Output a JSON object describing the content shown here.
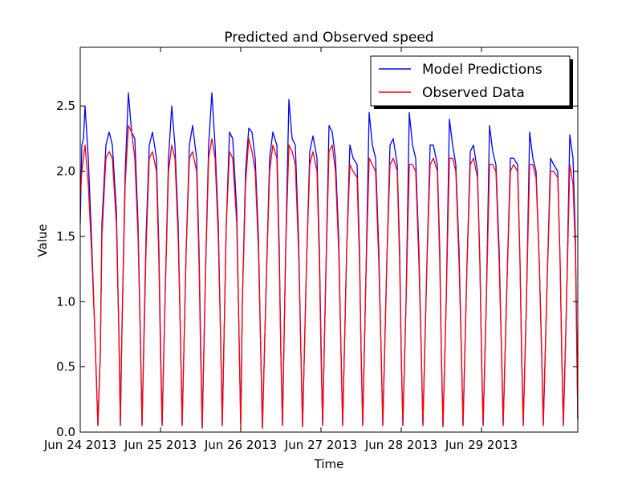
{
  "chart_data": {
    "type": "line",
    "title": "Predicted and Observed speed",
    "xlabel": "Time",
    "ylabel": "Value",
    "xlim": [
      0,
      6.2
    ],
    "ylim": [
      0.0,
      2.95
    ],
    "grid": false,
    "legend_position": "top-right",
    "x_ticks": [
      {
        "x": 0,
        "label": "Jun 24 2013"
      },
      {
        "x": 1,
        "label": "Jun 25 2013"
      },
      {
        "x": 2,
        "label": "Jun 26 2013"
      },
      {
        "x": 3,
        "label": "Jun 27 2013"
      },
      {
        "x": 4,
        "label": "Jun 28 2013"
      },
      {
        "x": 5,
        "label": "Jun 29 2013"
      }
    ],
    "y_ticks": [
      {
        "y": 0.0,
        "label": "0.0"
      },
      {
        "y": 0.5,
        "label": "0.5"
      },
      {
        "y": 1.0,
        "label": "1.0"
      },
      {
        "y": 1.5,
        "label": "1.5"
      },
      {
        "y": 2.0,
        "label": "2.0"
      },
      {
        "y": 2.5,
        "label": "2.5"
      }
    ],
    "series": [
      {
        "name": "Model Predictions",
        "color": "#0000ff",
        "x": [
          0,
          0.02,
          0.04,
          0.06,
          0.1,
          0.14,
          0.18,
          0.22,
          0.25,
          0.27,
          0.32,
          0.36,
          0.4,
          0.45,
          0.48,
          0.5,
          0.52,
          0.56,
          0.6,
          0.64,
          0.68,
          0.72,
          0.75,
          0.77,
          0.82,
          0.86,
          0.9,
          0.95,
          0.98,
          1.0,
          1.02,
          1.06,
          1.1,
          1.14,
          1.18,
          1.22,
          1.25,
          1.27,
          1.32,
          1.36,
          1.4,
          1.45,
          1.48,
          1.5,
          1.52,
          1.56,
          1.6,
          1.64,
          1.68,
          1.72,
          1.75,
          1.77,
          1.82,
          1.86,
          1.9,
          1.95,
          1.98,
          2.0,
          2.02,
          2.06,
          2.1,
          2.14,
          2.18,
          2.22,
          2.25,
          2.27,
          2.32,
          2.36,
          2.4,
          2.45,
          2.48,
          2.5,
          2.52,
          2.56,
          2.6,
          2.64,
          2.68,
          2.72,
          2.75,
          2.77,
          2.82,
          2.86,
          2.9,
          2.95,
          2.98,
          3.0,
          3.02,
          3.06,
          3.1,
          3.14,
          3.18,
          3.22,
          3.25,
          3.27,
          3.32,
          3.36,
          3.4,
          3.45,
          3.48,
          3.5,
          3.52,
          3.56,
          3.6,
          3.64,
          3.68,
          3.72,
          3.75,
          3.77,
          3.82,
          3.86,
          3.9,
          3.95,
          3.98,
          4.0,
          4.02,
          4.06,
          4.1,
          4.14,
          4.18,
          4.22,
          4.25,
          4.27,
          4.32,
          4.36,
          4.4,
          4.45,
          4.48,
          4.5,
          4.52,
          4.56,
          4.6,
          4.64,
          4.68,
          4.72,
          4.75,
          4.77,
          4.82,
          4.86,
          4.9,
          4.95,
          4.98,
          5.0,
          5.02,
          5.06,
          5.1,
          5.14,
          5.18,
          5.22,
          5.25,
          5.27,
          5.32,
          5.36,
          5.4,
          5.45,
          5.48,
          5.5,
          5.52,
          5.56,
          5.6,
          5.64,
          5.68,
          5.72,
          5.75,
          5.77,
          5.82,
          5.86,
          5.9,
          5.95,
          5.98,
          6.0,
          6.02,
          6.06,
          6.1,
          6.14,
          6.17,
          6.2
        ],
        "y": [
          1.6,
          2.2,
          2.25,
          2.5,
          2.1,
          1.5,
          0.8,
          0.05,
          0.6,
          1.6,
          2.2,
          2.3,
          2.2,
          1.7,
          0.8,
          0.05,
          0.8,
          2.0,
          2.6,
          2.3,
          2.25,
          1.6,
          0.7,
          0.05,
          1.5,
          2.2,
          2.3,
          2.1,
          1.4,
          0.7,
          0.05,
          1.1,
          2.1,
          2.5,
          2.2,
          1.6,
          0.7,
          0.05,
          1.4,
          2.2,
          2.35,
          2.1,
          1.4,
          0.7,
          0.03,
          1.2,
          2.2,
          2.6,
          2.2,
          1.6,
          0.7,
          0.05,
          1.6,
          2.3,
          2.25,
          1.7,
          0.7,
          0.06,
          1.0,
          2.0,
          2.33,
          2.3,
          2.1,
          1.5,
          0.6,
          0.03,
          1.2,
          2.1,
          2.3,
          2.2,
          1.4,
          0.6,
          0.05,
          1.4,
          2.55,
          2.25,
          2.2,
          1.5,
          0.6,
          0.04,
          1.3,
          2.15,
          2.27,
          2.1,
          1.4,
          0.7,
          0.05,
          1.2,
          2.35,
          2.3,
          2.1,
          1.5,
          0.6,
          0.05,
          1.4,
          2.2,
          2.1,
          2.05,
          1.4,
          0.6,
          0.05,
          1.2,
          2.45,
          2.2,
          2.1,
          1.4,
          0.6,
          0.05,
          1.3,
          2.2,
          2.25,
          2.05,
          1.4,
          0.6,
          0.05,
          1.0,
          2.45,
          2.2,
          2.1,
          1.4,
          0.6,
          0.05,
          1.3,
          2.2,
          2.2,
          2.05,
          1.4,
          0.6,
          0.04,
          1.0,
          2.4,
          2.2,
          2.05,
          1.4,
          0.6,
          0.05,
          1.3,
          2.15,
          2.2,
          2.0,
          1.3,
          0.6,
          0.05,
          1.0,
          2.35,
          2.15,
          2.05,
          1.4,
          0.6,
          0.05,
          1.2,
          2.1,
          2.1,
          2.05,
          1.3,
          0.6,
          0.05,
          1.0,
          2.3,
          2.1,
          2.0,
          1.3,
          0.6,
          0.05,
          1.2,
          2.1,
          2.05,
          2.0,
          1.3,
          0.6,
          0.05,
          1.0,
          2.28,
          2.1,
          1.5,
          0.1
        ],
        "daily_peak_pattern": "two peaks per day"
      },
      {
        "name": "Observed Data",
        "color": "#ff0000",
        "x": [
          0,
          0.02,
          0.04,
          0.06,
          0.1,
          0.14,
          0.18,
          0.22,
          0.25,
          0.27,
          0.32,
          0.36,
          0.4,
          0.45,
          0.48,
          0.5,
          0.52,
          0.56,
          0.6,
          0.64,
          0.68,
          0.72,
          0.75,
          0.77,
          0.82,
          0.86,
          0.9,
          0.95,
          0.98,
          1.0,
          1.02,
          1.06,
          1.1,
          1.14,
          1.18,
          1.22,
          1.25,
          1.27,
          1.32,
          1.36,
          1.4,
          1.45,
          1.48,
          1.5,
          1.52,
          1.56,
          1.6,
          1.64,
          1.68,
          1.72,
          1.75,
          1.77,
          1.82,
          1.86,
          1.9,
          1.95,
          1.98,
          2.0,
          2.02,
          2.06,
          2.1,
          2.14,
          2.18,
          2.22,
          2.25,
          2.27,
          2.32,
          2.36,
          2.4,
          2.45,
          2.48,
          2.5,
          2.52,
          2.56,
          2.6,
          2.64,
          2.68,
          2.72,
          2.75,
          2.77,
          2.82,
          2.86,
          2.9,
          2.95,
          2.98,
          3.0,
          3.02,
          3.06,
          3.1,
          3.14,
          3.18,
          3.22,
          3.25,
          3.27,
          3.32,
          3.36,
          3.4,
          3.45,
          3.48,
          3.5,
          3.52,
          3.56,
          3.6,
          3.64,
          3.68,
          3.72,
          3.75,
          3.77,
          3.82,
          3.86,
          3.9,
          3.95,
          3.98,
          4.0,
          4.02,
          4.06,
          4.1,
          4.14,
          4.18,
          4.22,
          4.25,
          4.27,
          4.32,
          4.36,
          4.4,
          4.45,
          4.48,
          4.5,
          4.52,
          4.56,
          4.6,
          4.64,
          4.68,
          4.72,
          4.75,
          4.77,
          4.82,
          4.86,
          4.9,
          4.95,
          4.98,
          5.0,
          5.02,
          5.06,
          5.1,
          5.14,
          5.18,
          5.22,
          5.25,
          5.27,
          5.32,
          5.36,
          5.4,
          5.45,
          5.48,
          5.5,
          5.52,
          5.56,
          5.6,
          5.64,
          5.68,
          5.72,
          5.75,
          5.77,
          5.82,
          5.86,
          5.9,
          5.95,
          5.98,
          6.0,
          6.02,
          6.06,
          6.1,
          6.14,
          6.17,
          6.2
        ],
        "y": [
          1.8,
          2.0,
          2.1,
          2.2,
          1.9,
          1.4,
          0.8,
          0.05,
          0.6,
          1.5,
          2.1,
          2.15,
          2.1,
          1.6,
          0.8,
          0.07,
          0.8,
          1.9,
          2.35,
          2.3,
          2.1,
          1.5,
          0.7,
          0.05,
          1.4,
          2.1,
          2.15,
          2.0,
          1.3,
          0.6,
          0.05,
          1.1,
          2.0,
          2.2,
          2.1,
          1.5,
          0.7,
          0.05,
          1.4,
          2.1,
          2.15,
          2.0,
          1.3,
          0.6,
          0.03,
          1.2,
          2.1,
          2.25,
          2.1,
          1.5,
          0.7,
          0.05,
          1.6,
          2.15,
          2.1,
          1.6,
          0.7,
          0.02,
          1.0,
          1.9,
          2.25,
          2.15,
          2.0,
          1.4,
          0.6,
          0.03,
          1.2,
          2.0,
          2.2,
          2.1,
          1.3,
          0.6,
          0.05,
          1.4,
          2.2,
          2.15,
          2.05,
          1.4,
          0.6,
          0.04,
          1.3,
          2.05,
          2.15,
          2.0,
          1.3,
          0.6,
          0.05,
          1.2,
          2.15,
          2.2,
          2.0,
          1.4,
          0.6,
          0.05,
          1.4,
          2.05,
          2.0,
          1.95,
          1.3,
          0.6,
          0.05,
          1.2,
          2.1,
          2.05,
          2.0,
          1.3,
          0.6,
          0.05,
          1.3,
          2.05,
          2.1,
          2.0,
          1.3,
          0.6,
          0.05,
          1.0,
          2.05,
          2.05,
          2.0,
          1.3,
          0.6,
          0.05,
          1.3,
          2.05,
          2.1,
          2.0,
          1.3,
          0.6,
          0.04,
          1.0,
          2.1,
          2.1,
          2.0,
          1.3,
          0.6,
          0.05,
          1.3,
          2.05,
          2.1,
          1.95,
          1.3,
          0.6,
          0.05,
          1.0,
          2.05,
          2.05,
          2.0,
          1.3,
          0.6,
          0.05,
          1.2,
          2.0,
          2.05,
          2.0,
          1.3,
          0.6,
          0.05,
          1.0,
          2.05,
          2.05,
          1.95,
          1.3,
          0.6,
          0.05,
          1.2,
          2.0,
          2.0,
          1.95,
          1.3,
          0.6,
          0.05,
          1.0,
          2.05,
          1.9,
          1.4,
          0.1
        ]
      }
    ]
  }
}
